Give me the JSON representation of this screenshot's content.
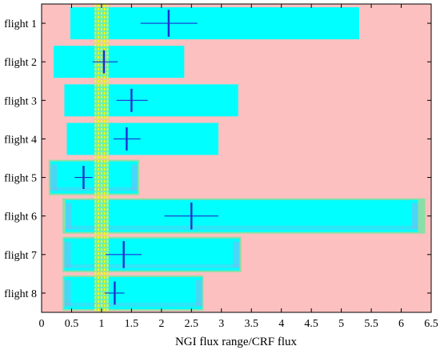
{
  "chart_data": {
    "type": "range-bar",
    "title": "",
    "xlabel": "NGI flux range/CRF flux",
    "ylabel": "",
    "xlim": [
      0,
      6.5
    ],
    "x_ticks": [
      "0",
      "0.5",
      "1",
      "1.5",
      "2",
      "2.5",
      "3",
      "3.5",
      "4",
      "4.5",
      "5",
      "5.5",
      "6",
      "6.5"
    ],
    "grid": false,
    "categories": [
      "flight 1",
      "flight 2",
      "flight 3",
      "flight 4",
      "flight 5",
      "flight 6",
      "flight 7",
      "flight 8"
    ],
    "flux_range": [
      {
        "low": 0.48,
        "high": 5.3
      },
      {
        "low": 0.2,
        "high": 2.38
      },
      {
        "low": 0.38,
        "high": 3.28
      },
      {
        "low": 0.42,
        "high": 2.95
      },
      {
        "low": 0.15,
        "high": 1.6
      },
      {
        "low": 0.4,
        "high": 6.28
      },
      {
        "low": 0.38,
        "high": 3.3
      },
      {
        "low": 0.38,
        "high": 2.68
      }
    ],
    "outer_range": [
      null,
      null,
      null,
      null,
      {
        "low": 0.12,
        "high": 1.63
      },
      {
        "low": 0.35,
        "high": 6.4
      },
      {
        "low": 0.35,
        "high": 3.33
      },
      {
        "low": 0.35,
        "high": 2.7
      }
    ],
    "estimate": [
      {
        "x": 2.12,
        "x_low": 1.65,
        "x_high": 2.6,
        "y_err": 0.35
      },
      {
        "x": 1.04,
        "x_low": 0.85,
        "x_high": 1.27,
        "y_err": 0.3
      },
      {
        "x": 1.5,
        "x_low": 1.25,
        "x_high": 1.77,
        "y_err": 0.3
      },
      {
        "x": 1.42,
        "x_low": 1.2,
        "x_high": 1.65,
        "y_err": 0.3
      },
      {
        "x": 0.7,
        "x_low": 0.55,
        "x_high": 0.85,
        "y_err": 0.3
      },
      {
        "x": 2.5,
        "x_low": 2.05,
        "x_high": 2.95,
        "y_err": 0.35
      },
      {
        "x": 1.37,
        "x_low": 1.07,
        "x_high": 1.67,
        "y_err": 0.35
      },
      {
        "x": 1.22,
        "x_low": 1.05,
        "x_high": 1.38,
        "y_err": 0.3
      }
    ],
    "reference_lines": [
      0.9,
      0.95,
      1.0,
      1.05,
      1.1
    ],
    "highlight_band": {
      "low": 0.88,
      "high": 1.12
    },
    "colors": {
      "background": "#fcc0c0",
      "range": "#00ffff",
      "outer": "#8adfa6",
      "inner_shade": "#86b4ec",
      "band": "#c8e070",
      "reference": "#ffff00",
      "estimate": "#1f2fd0",
      "axis": "#000000"
    }
  }
}
